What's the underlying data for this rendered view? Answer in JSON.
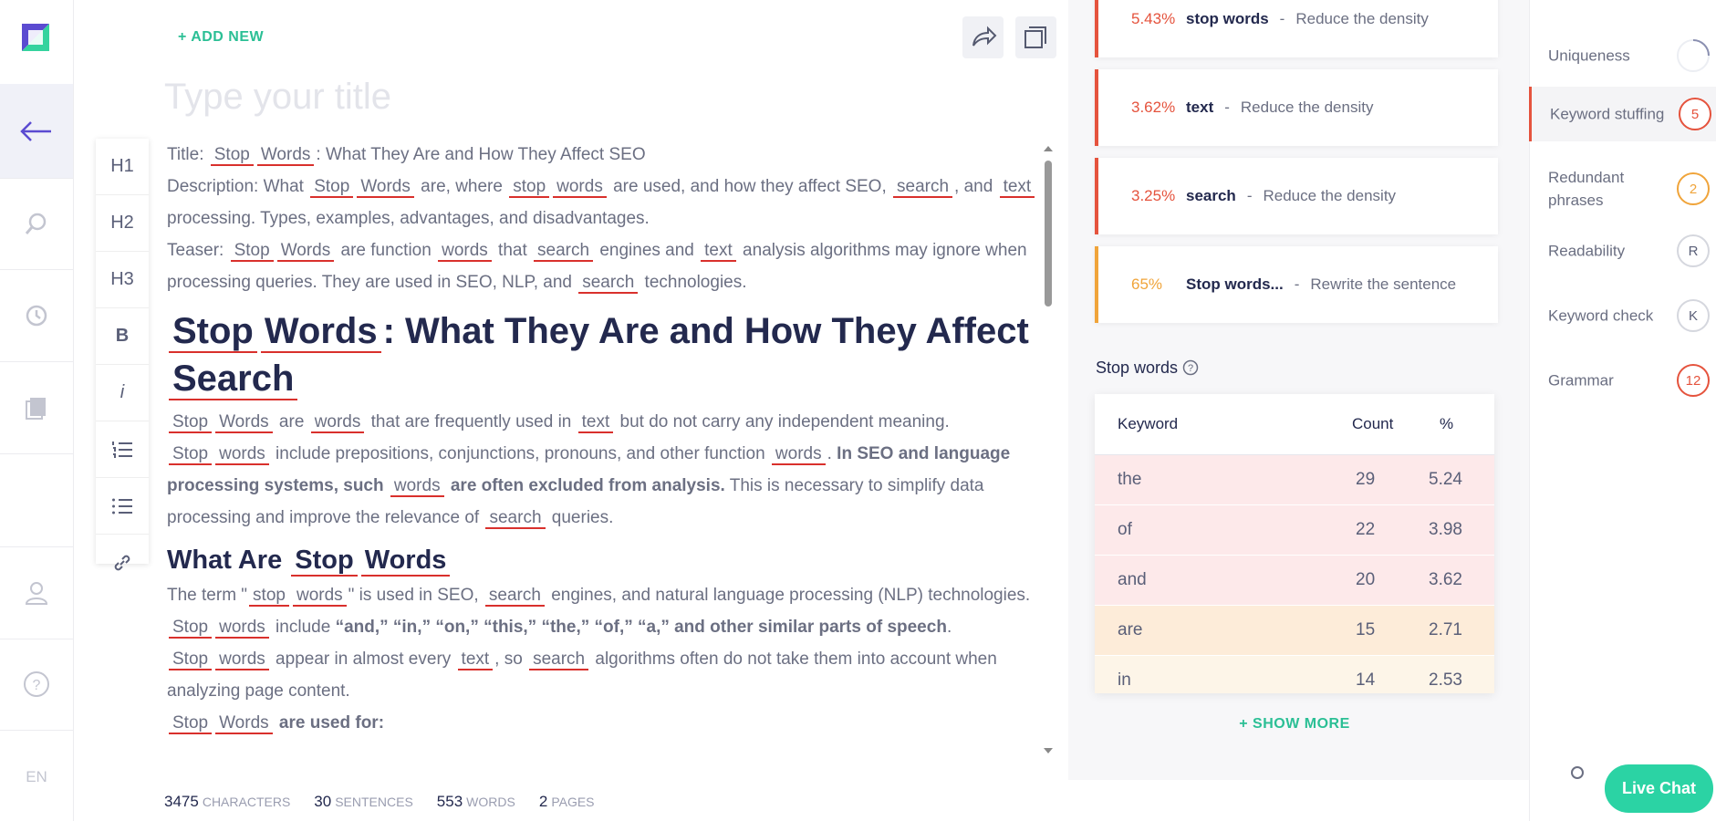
{
  "sidebar": {
    "language": "EN"
  },
  "editor": {
    "add_new": "+ ADD NEW",
    "title_placeholder": "Type your title",
    "toolbar": [
      "H1",
      "H2",
      "H3",
      "B",
      "i"
    ],
    "blocks": [
      {
        "tag": "p",
        "runs": [
          {
            "text": "Title: "
          },
          {
            "text": "Stop",
            "mark": "keyword"
          },
          {
            "text": "Words",
            "mark": "keyword"
          },
          {
            "text": ": What They Are and How They Affect SEO"
          }
        ]
      },
      {
        "tag": "p",
        "runs": [
          {
            "text": "Description: What "
          },
          {
            "text": "Stop",
            "mark": "keyword"
          },
          {
            "text": "Words",
            "mark": "keyword"
          },
          {
            "text": " are, where "
          },
          {
            "text": "stop",
            "mark": "keyword"
          },
          {
            "text": "words",
            "mark": "keyword"
          },
          {
            "text": " are used, and how they affect SEO, "
          },
          {
            "text": "search",
            "mark": "keyword"
          },
          {
            "text": ", and "
          },
          {
            "text": "text",
            "mark": "keyword"
          },
          {
            "text": " processing. Types, examples, advantages, and disadvantages."
          }
        ]
      },
      {
        "tag": "p",
        "runs": [
          {
            "text": "Teaser: "
          },
          {
            "text": "Stop",
            "mark": "keyword"
          },
          {
            "text": "Words",
            "mark": "keyword"
          },
          {
            "text": " are function "
          },
          {
            "text": "words",
            "mark": "keyword"
          },
          {
            "text": " that "
          },
          {
            "text": "search",
            "mark": "keyword"
          },
          {
            "text": " engines and "
          },
          {
            "text": "text",
            "mark": "keyword"
          },
          {
            "text": " analysis algorithms may ignore when processing queries. They are used in SEO, NLP, and "
          },
          {
            "text": "search",
            "mark": "keyword"
          },
          {
            "text": " technologies."
          }
        ]
      },
      {
        "tag": "h1",
        "runs": [
          {
            "text": "Stop",
            "mark": "keyword"
          },
          {
            "text": "Words",
            "mark": "keyword"
          },
          {
            "text": ": What They Are and How They Affect "
          },
          {
            "text": "Search",
            "mark": "keyword"
          }
        ]
      },
      {
        "tag": "p",
        "runs": [
          {
            "text": "Stop",
            "mark": "keyword"
          },
          {
            "text": "Words",
            "mark": "keyword"
          },
          {
            "text": " are "
          },
          {
            "text": "words",
            "mark": "keyword"
          },
          {
            "text": " that are frequently used in "
          },
          {
            "text": "text",
            "mark": "keyword"
          },
          {
            "text": " but do not carry any independent meaning. "
          },
          {
            "text": "Stop",
            "mark": "keyword"
          },
          {
            "text": "words",
            "mark": "keyword"
          },
          {
            "text": " include prepositions, conjunctions, pronouns, and other function "
          },
          {
            "text": "words",
            "mark": "keyword"
          },
          {
            "text": ". "
          },
          {
            "text": "In SEO and language processing systems, such ",
            "mark": "bold"
          },
          {
            "text": "words",
            "mark": "keyword"
          },
          {
            "text": " are often excluded from analysis.",
            "mark": "bold"
          },
          {
            "text": " This is necessary to simplify data processing and improve the relevance of "
          },
          {
            "text": "search",
            "mark": "keyword"
          },
          {
            "text": " queries."
          }
        ]
      },
      {
        "tag": "h2",
        "runs": [
          {
            "text": "What Are "
          },
          {
            "text": "Stop",
            "mark": "keyword"
          },
          {
            "text": "Words",
            "mark": "keyword"
          }
        ]
      },
      {
        "tag": "p",
        "runs": [
          {
            "text": "The term \""
          },
          {
            "text": "stop",
            "mark": "keyword"
          },
          {
            "text": "words",
            "mark": "keyword"
          },
          {
            "text": "\" is used in SEO, "
          },
          {
            "text": "search",
            "mark": "keyword"
          },
          {
            "text": " engines, and natural language processing (NLP) technologies. "
          },
          {
            "text": "Stop",
            "mark": "keyword"
          },
          {
            "text": "words",
            "mark": "keyword"
          },
          {
            "text": " include "
          },
          {
            "text": "“and,” “in,” “on,” “this,” “the,” “of,” “a,” and other similar parts of speech",
            "mark": "bold"
          },
          {
            "text": ". "
          },
          {
            "text": "Stop",
            "mark": "keyword"
          },
          {
            "text": "words",
            "mark": "keyword"
          },
          {
            "text": " appear in almost every "
          },
          {
            "text": "text",
            "mark": "keyword"
          },
          {
            "text": ", so "
          },
          {
            "text": "search",
            "mark": "keyword"
          },
          {
            "text": " algorithms often do not take them into account when analyzing page content."
          }
        ]
      },
      {
        "tag": "p",
        "runs": [
          {
            "text": "Stop",
            "mark": "keyword"
          },
          {
            "text": "Words",
            "mark": "keyword"
          },
          {
            "text": " are used for:",
            "mark": "bold"
          }
        ]
      }
    ]
  },
  "stats": [
    {
      "value": 3475,
      "label": "CHARACTERS"
    },
    {
      "value": 30,
      "label": "SENTENCES"
    },
    {
      "value": 553,
      "label": "WORDS"
    },
    {
      "value": 2,
      "label": "PAGES"
    }
  ],
  "alerts": {
    "separator": "-",
    "items": [
      {
        "percent": "5.43%",
        "keyword": "stop words",
        "action": "Reduce the density",
        "color": "#e5533d"
      },
      {
        "percent": "3.62%",
        "keyword": "text",
        "action": "Reduce the density",
        "color": "#e5533d"
      },
      {
        "percent": "3.25%",
        "keyword": "search",
        "action": "Reduce the density",
        "color": "#e5533d"
      },
      {
        "percent": "65%",
        "keyword": "Stop words...",
        "action": "Rewrite the sentence",
        "color": "#f0a43a"
      }
    ]
  },
  "stop_words": {
    "title": "Stop words",
    "columns": [
      "Keyword",
      "Count",
      "%"
    ],
    "rows": [
      {
        "keyword": "the",
        "count": 29,
        "percent": 5.24,
        "color": "#fde9ea"
      },
      {
        "keyword": "of",
        "count": 22,
        "percent": 3.98,
        "color": "#fde9ea"
      },
      {
        "keyword": "and",
        "count": 20,
        "percent": 3.62,
        "color": "#fde9ea"
      },
      {
        "keyword": "are",
        "count": 15,
        "percent": 2.71,
        "color": "#fdecd9"
      },
      {
        "keyword": "in",
        "count": 14,
        "percent": 2.53,
        "color": "#fdf5e8"
      }
    ],
    "show_more": "+ SHOW MORE"
  },
  "checks": [
    {
      "label": "Uniqueness"
    },
    {
      "label": "Keyword stuffing",
      "badge": 5,
      "color": "#e5533d",
      "active": true
    },
    {
      "label": "Redundant phrases",
      "badge": 2,
      "color": "#f0a43a"
    },
    {
      "label": "Readability",
      "badge": "R",
      "color": "#d5d7de"
    },
    {
      "label": "Keyword check",
      "badge": "K",
      "color": "#d5d7de"
    },
    {
      "label": "Grammar",
      "badge": 12,
      "color": "#e5533d"
    }
  ],
  "live_chat": "Live Chat"
}
